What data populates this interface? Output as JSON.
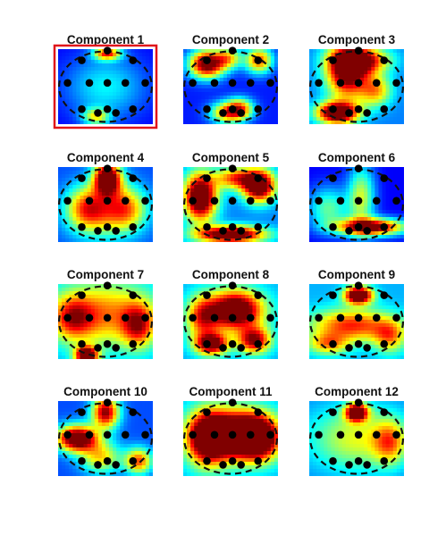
{
  "chart_data": {
    "type": "heatmap",
    "colormap": "jet",
    "grid": "3x4",
    "selected": "Component 1",
    "highlight_color": "#e0141b",
    "panels": [
      {
        "title": "Component 1",
        "hotspots": [
          [
            0.52,
            0.06,
            0.7,
            0.1,
            0.06
          ],
          [
            0.4,
            0.9,
            0.45,
            0.1,
            0.08
          ],
          [
            0.5,
            0.5,
            0.25,
            0.3,
            0.3
          ]
        ],
        "base": 0.12
      },
      {
        "title": "Component 2",
        "hotspots": [
          [
            0.25,
            0.2,
            0.95,
            0.13,
            0.13
          ],
          [
            0.8,
            0.15,
            0.65,
            0.1,
            0.12
          ],
          [
            0.48,
            0.12,
            0.45,
            0.1,
            0.1
          ],
          [
            0.45,
            0.85,
            0.55,
            0.12,
            0.1
          ],
          [
            0.6,
            0.8,
            0.6,
            0.1,
            0.1
          ]
        ],
        "base": 0.15
      },
      {
        "title": "Component 3",
        "hotspots": [
          [
            0.4,
            0.3,
            0.85,
            0.15,
            0.25
          ],
          [
            0.3,
            0.85,
            1.0,
            0.15,
            0.1
          ],
          [
            0.55,
            0.15,
            0.7,
            0.2,
            0.12
          ],
          [
            0.7,
            0.55,
            0.45,
            0.12,
            0.15
          ]
        ],
        "base": 0.25
      },
      {
        "title": "Component 4",
        "hotspots": [
          [
            0.52,
            0.15,
            1.0,
            0.1,
            0.15
          ],
          [
            0.3,
            0.55,
            0.45,
            0.15,
            0.2
          ],
          [
            0.72,
            0.55,
            0.4,
            0.15,
            0.2
          ],
          [
            0.5,
            0.6,
            0.35,
            0.25,
            0.25
          ]
        ],
        "base": 0.2
      },
      {
        "title": "Component 5",
        "hotspots": [
          [
            0.18,
            0.4,
            1.0,
            0.12,
            0.22
          ],
          [
            0.8,
            0.25,
            0.95,
            0.12,
            0.15
          ],
          [
            0.5,
            0.9,
            0.95,
            0.25,
            0.08
          ],
          [
            0.55,
            0.15,
            0.55,
            0.15,
            0.1
          ]
        ],
        "base": 0.25
      },
      {
        "title": "Component 6",
        "hotspots": [
          [
            0.65,
            0.8,
            0.95,
            0.25,
            0.08
          ],
          [
            0.55,
            0.4,
            0.45,
            0.1,
            0.3
          ],
          [
            0.2,
            0.55,
            0.35,
            0.15,
            0.2
          ]
        ],
        "base": 0.12
      },
      {
        "title": "Component 7",
        "hotspots": [
          [
            0.3,
            0.95,
            0.95,
            0.08,
            0.08
          ],
          [
            0.5,
            0.4,
            0.45,
            0.35,
            0.3
          ],
          [
            0.15,
            0.45,
            0.45,
            0.15,
            0.2
          ],
          [
            0.85,
            0.55,
            0.5,
            0.12,
            0.2
          ]
        ],
        "base": 0.3
      },
      {
        "title": "Component 8",
        "hotspots": [
          [
            0.55,
            0.35,
            0.95,
            0.2,
            0.18
          ],
          [
            0.3,
            0.8,
            0.8,
            0.12,
            0.1
          ],
          [
            0.75,
            0.75,
            0.7,
            0.12,
            0.12
          ],
          [
            0.2,
            0.45,
            0.5,
            0.12,
            0.2
          ]
        ],
        "base": 0.3
      },
      {
        "title": "Component 9",
        "hotspots": [
          [
            0.52,
            0.15,
            1.0,
            0.1,
            0.08
          ],
          [
            0.45,
            0.55,
            0.55,
            0.3,
            0.15
          ],
          [
            0.85,
            0.7,
            0.4,
            0.12,
            0.15
          ],
          [
            0.2,
            0.8,
            0.4,
            0.15,
            0.1
          ]
        ],
        "base": 0.3
      },
      {
        "title": "Component 10",
        "hotspots": [
          [
            0.2,
            0.5,
            1.0,
            0.15,
            0.12
          ],
          [
            0.5,
            0.15,
            0.8,
            0.1,
            0.15
          ],
          [
            0.85,
            0.8,
            0.6,
            0.1,
            0.12
          ],
          [
            0.45,
            0.75,
            0.45,
            0.15,
            0.15
          ]
        ],
        "base": 0.2
      },
      {
        "title": "Component 11",
        "hotspots": [
          [
            0.55,
            0.45,
            1.0,
            0.25,
            0.22
          ],
          [
            0.25,
            0.5,
            0.75,
            0.15,
            0.25
          ],
          [
            0.8,
            0.5,
            0.7,
            0.15,
            0.2
          ]
        ],
        "base": 0.3
      },
      {
        "title": "Component 12",
        "hotspots": [
          [
            0.5,
            0.15,
            0.95,
            0.08,
            0.08
          ],
          [
            0.5,
            0.5,
            0.35,
            0.35,
            0.3
          ],
          [
            0.85,
            0.55,
            0.4,
            0.12,
            0.2
          ]
        ],
        "base": 0.25
      }
    ],
    "electrodes": [
      [
        0.52,
        0.02
      ],
      [
        0.25,
        0.15
      ],
      [
        0.79,
        0.15
      ],
      [
        0.1,
        0.45
      ],
      [
        0.33,
        0.45
      ],
      [
        0.52,
        0.45
      ],
      [
        0.71,
        0.45
      ],
      [
        0.92,
        0.45
      ],
      [
        0.25,
        0.8
      ],
      [
        0.42,
        0.85
      ],
      [
        0.61,
        0.85
      ],
      [
        0.79,
        0.8
      ],
      [
        0.52,
        0.8
      ]
    ]
  }
}
